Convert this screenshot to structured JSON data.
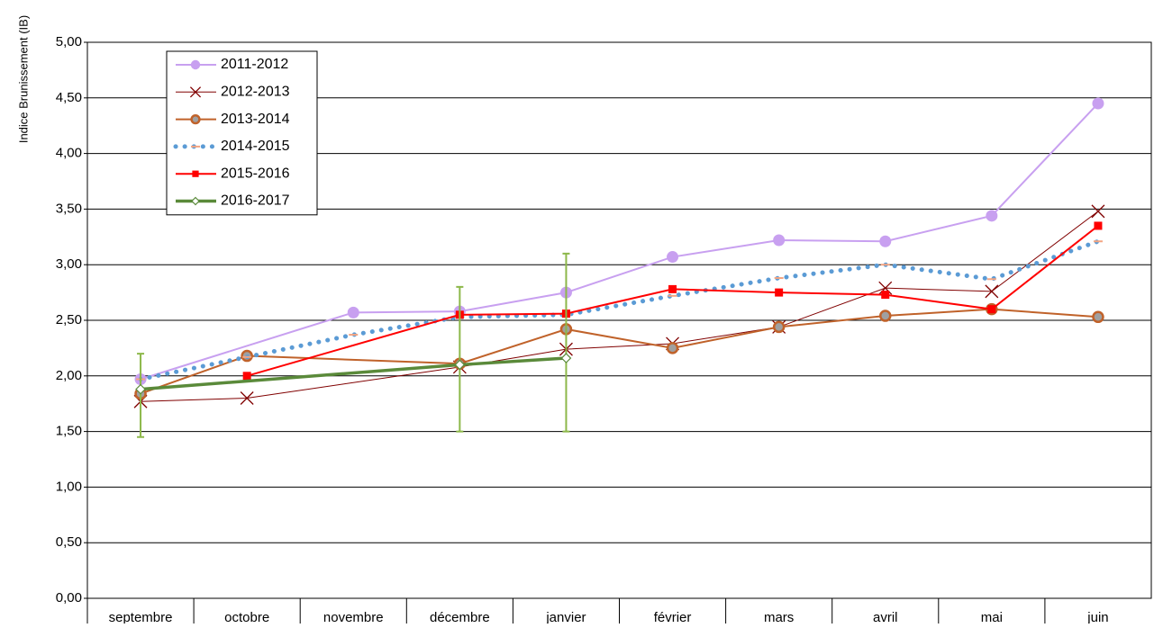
{
  "chart_data": {
    "type": "line",
    "y_label": "Indice Brunissement (IB)",
    "categories": [
      "septembre",
      "octobre",
      "novembre",
      "décembre",
      "janvier",
      "février",
      "mars",
      "avril",
      "mai",
      "juin"
    ],
    "ylim": [
      0,
      5
    ],
    "yticks": [
      {
        "value": 0,
        "label": "0,00"
      },
      {
        "value": 0.5,
        "label": "0,50"
      },
      {
        "value": 1,
        "label": "1,00"
      },
      {
        "value": 1.5,
        "label": "1,50"
      },
      {
        "value": 2,
        "label": "2,00"
      },
      {
        "value": 2.5,
        "label": "2,50"
      },
      {
        "value": 3,
        "label": "3,00"
      },
      {
        "value": 3.5,
        "label": "3,50"
      },
      {
        "value": 4,
        "label": "4,00"
      },
      {
        "value": 4.5,
        "label": "4,50"
      },
      {
        "value": 5,
        "label": "5,00"
      }
    ],
    "grid": true,
    "legend": "upper left",
    "connect_gaps": true,
    "series": [
      {
        "name": "2011-2012",
        "color": "#c8a0f0",
        "marker": "circle",
        "values": [
          1.97,
          null,
          2.57,
          2.58,
          2.75,
          3.07,
          3.22,
          3.21,
          3.44,
          4.45
        ]
      },
      {
        "name": "2012-2013",
        "color": "#800000",
        "marker": "x",
        "values": [
          1.77,
          1.8,
          null,
          2.08,
          2.24,
          2.29,
          2.44,
          2.79,
          2.76,
          3.48
        ]
      },
      {
        "name": "2013-2014",
        "color": "#c0622a",
        "marker": "ring",
        "values": [
          1.84,
          2.18,
          null,
          2.11,
          2.42,
          2.25,
          2.44,
          2.54,
          2.6,
          2.53
        ]
      },
      {
        "name": "2014-2015",
        "color": "#5b9bd5",
        "marker": "dash",
        "dotted": true,
        "values": [
          1.97,
          2.17,
          2.37,
          2.53,
          2.55,
          2.72,
          2.88,
          3.0,
          2.87,
          3.21
        ]
      },
      {
        "name": "2015-2016",
        "color": "#ff0000",
        "marker": "square",
        "values": [
          null,
          2.0,
          null,
          2.55,
          2.56,
          2.78,
          2.75,
          2.73,
          2.6,
          3.35
        ]
      },
      {
        "name": "2016-2017",
        "color": "#5a8a3a",
        "marker": "diamond",
        "thick": true,
        "values": [
          1.88,
          null,
          null,
          2.1,
          2.16,
          null,
          null,
          null,
          null,
          null
        ],
        "error_low": [
          1.45,
          null,
          null,
          1.5,
          1.5,
          null,
          null,
          null,
          null,
          null
        ],
        "error_high": [
          2.2,
          null,
          null,
          2.8,
          3.1,
          null,
          null,
          null,
          null,
          null
        ],
        "error_color": "#8db84a"
      }
    ]
  }
}
